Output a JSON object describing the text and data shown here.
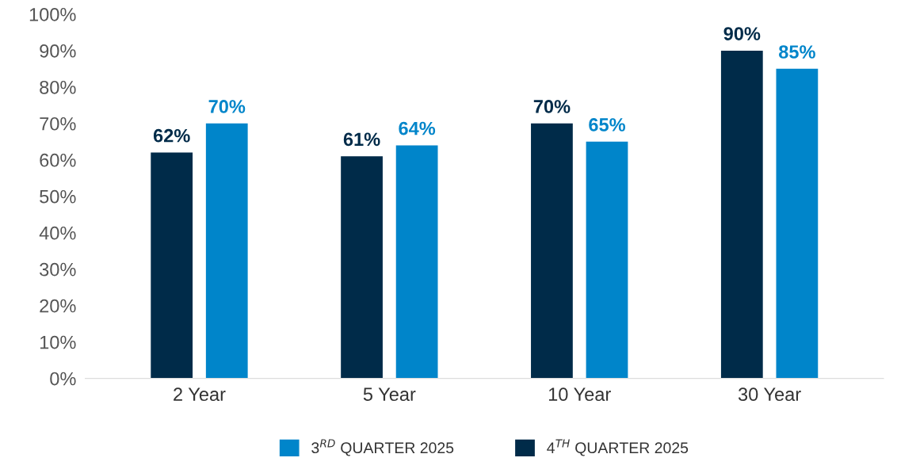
{
  "chart_data": {
    "type": "bar",
    "categories": [
      "2 Year",
      "5 Year",
      "10 Year",
      "30 Year"
    ],
    "series": [
      {
        "name": "4$^{TH}$ QUARTER 2025",
        "color": "#002b49",
        "values": [
          62,
          61,
          70,
          90
        ],
        "value_labels": [
          "62%",
          "61%",
          "70%",
          "90%"
        ]
      },
      {
        "name": "3$^{RD}$ QUARTER 2025",
        "color": "#0085ca",
        "values": [
          70,
          64,
          65,
          85
        ],
        "value_labels": [
          "70%",
          "64%",
          "65%",
          "85%"
        ]
      }
    ],
    "ylim": [
      0,
      100
    ],
    "yticks": [
      {
        "value": 0,
        "label": "0%"
      },
      {
        "value": 10,
        "label": "10%"
      },
      {
        "value": 20,
        "label": "20%"
      },
      {
        "value": 30,
        "label": "30%"
      },
      {
        "value": 40,
        "label": "40%"
      },
      {
        "value": 50,
        "label": "50%"
      },
      {
        "value": 60,
        "label": "60%"
      },
      {
        "value": 70,
        "label": "70%"
      },
      {
        "value": 80,
        "label": "80%"
      },
      {
        "value": 90,
        "label": "90%"
      },
      {
        "value": 100,
        "label": "100%"
      }
    ],
    "grid": false,
    "legend": "bottom"
  }
}
